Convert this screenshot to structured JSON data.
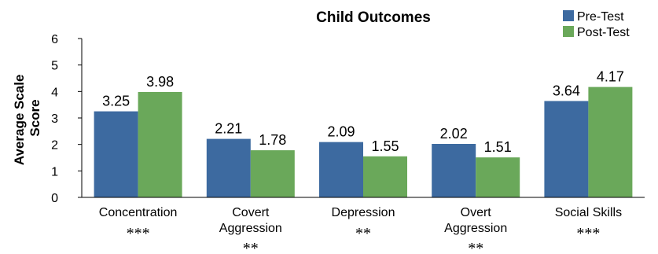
{
  "chart_data": {
    "type": "bar",
    "title": "Child Outcomes",
    "ylabel": [
      "Average Scale",
      "Score"
    ],
    "xlabel": "",
    "ylim": [
      0,
      6
    ],
    "yticks": [
      0,
      1,
      2,
      3,
      4,
      5,
      6
    ],
    "grid": false,
    "legend_position": "top-right",
    "categories": [
      [
        "Concentration"
      ],
      [
        "Covert",
        "Aggression"
      ],
      [
        "Depression"
      ],
      [
        "Overt",
        "Aggression"
      ],
      [
        "Social Skills"
      ]
    ],
    "significance": [
      "***",
      "**",
      "**",
      "**",
      "***"
    ],
    "series": [
      {
        "name": "Pre-Test",
        "color": "#3d6aa0",
        "values": [
          3.25,
          2.21,
          2.09,
          2.02,
          3.64
        ],
        "labels": [
          "3.25",
          "2.21",
          "2.09",
          "2.02",
          "3.64"
        ]
      },
      {
        "name": "Post-Test",
        "color": "#6aa85a",
        "values": [
          3.98,
          1.78,
          1.55,
          1.51,
          4.17
        ],
        "labels": [
          "3.98",
          "1.78",
          "1.55",
          "1.51",
          "4.17"
        ]
      }
    ]
  }
}
